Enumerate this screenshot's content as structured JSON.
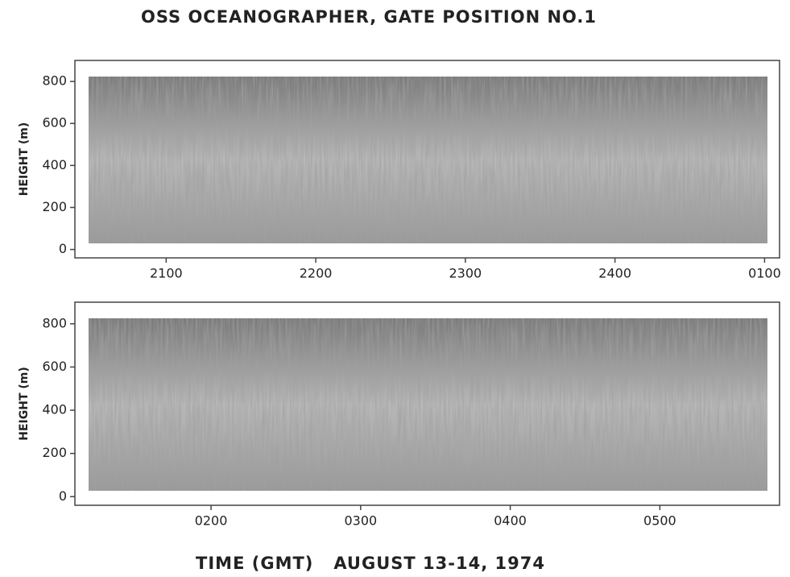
{
  "title": "OSS OCEANOGRAPHER, GATE POSITION NO.1",
  "xlabel": "TIME (GMT)   AUGUST 13-14, 1974",
  "chart_data": [
    {
      "type": "echogram",
      "ylabel": "HEIGHT (m)",
      "ylim": [
        -40,
        900
      ],
      "yticks": [
        0,
        200,
        400,
        600,
        800
      ],
      "xlim": [
        20.39,
        25.1
      ],
      "xticks": [
        {
          "value": 21,
          "label": "2100"
        },
        {
          "value": 22,
          "label": "2200"
        },
        {
          "value": 23,
          "label": "2300"
        },
        {
          "value": 24,
          "label": "2400"
        },
        {
          "value": 25,
          "label": "0100"
        }
      ]
    },
    {
      "type": "echogram",
      "ylabel": "HEIGHT (m)",
      "ylim": [
        -40,
        900
      ],
      "yticks": [
        0,
        200,
        400,
        600,
        800
      ],
      "xlim": [
        1.09,
        5.8
      ],
      "xticks": [
        {
          "value": 2,
          "label": "0200"
        },
        {
          "value": 3,
          "label": "0300"
        },
        {
          "value": 4,
          "label": "0400"
        },
        {
          "value": 5,
          "label": "0500"
        }
      ]
    }
  ]
}
